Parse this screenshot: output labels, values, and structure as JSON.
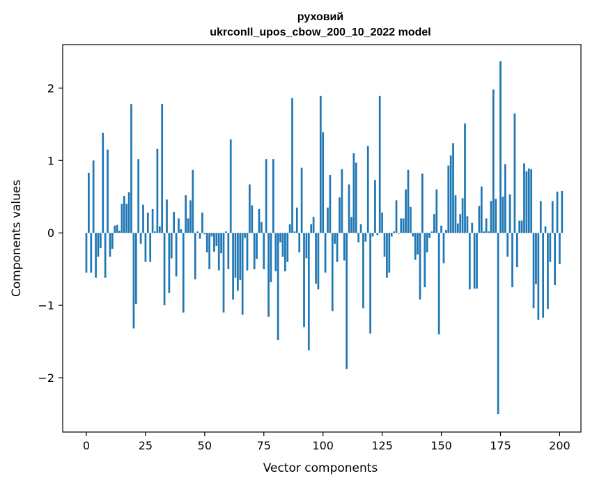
{
  "chart_data": {
    "type": "bar",
    "title": "руховий",
    "subtitle": "ukrconll_upos_cbow_200_10_2022 model",
    "xlabel": "Vector components",
    "ylabel": "Components values",
    "xlim": [
      -10,
      209
    ],
    "ylim": [
      -2.75,
      2.6
    ],
    "xticks": [
      0,
      25,
      50,
      75,
      100,
      125,
      150,
      175,
      200
    ],
    "yticks": [
      -2,
      -1,
      0,
      1,
      2
    ],
    "ytick_labels": [
      "−2",
      "−1",
      "0",
      "1",
      "2"
    ],
    "bar_color": "#1f77b4",
    "grid": false,
    "legend": "none",
    "values": [
      -0.55,
      0.83,
      -0.55,
      1.0,
      -0.62,
      -0.33,
      -0.21,
      1.38,
      -0.62,
      1.15,
      -0.33,
      -0.22,
      0.1,
      0.11,
      0.03,
      0.4,
      0.51,
      0.4,
      0.56,
      1.78,
      -1.32,
      -0.98,
      1.02,
      -0.15,
      0.39,
      -0.4,
      0.28,
      -0.4,
      0.33,
      0.02,
      1.16,
      0.09,
      1.78,
      -1.0,
      0.46,
      -0.83,
      -0.35,
      0.29,
      -0.6,
      0.2,
      0.05,
      -1.1,
      0.52,
      0.2,
      0.45,
      0.87,
      -0.64,
      0.02,
      -0.08,
      0.28,
      -0.02,
      -0.27,
      -0.5,
      -0.05,
      -0.26,
      -0.18,
      -0.52,
      -0.28,
      -1.1,
      0.02,
      -0.5,
      1.29,
      -0.92,
      -0.62,
      -0.8,
      -0.65,
      -1.13,
      -0.07,
      -0.52,
      0.67,
      0.38,
      -0.5,
      -0.36,
      0.33,
      0.15,
      -0.5,
      1.02,
      -1.16,
      -0.68,
      1.02,
      -0.53,
      -1.48,
      -0.13,
      -0.33,
      -0.53,
      -0.4,
      0.12,
      1.86,
      0.02,
      0.35,
      -0.27,
      0.9,
      -1.3,
      -0.35,
      -1.62,
      0.12,
      0.22,
      -0.7,
      -0.78,
      1.89,
      1.39,
      -0.55,
      0.35,
      0.8,
      -1.08,
      -0.15,
      -0.4,
      0.49,
      0.88,
      -0.38,
      -1.88,
      0.67,
      0.22,
      1.1,
      0.97,
      -0.13,
      0.12,
      -1.04,
      -0.12,
      1.2,
      -1.39,
      -0.05,
      0.73,
      -0.03,
      1.89,
      0.28,
      -0.33,
      -0.62,
      -0.55,
      -0.05,
      0.02,
      0.45,
      -0.01,
      0.2,
      0.2,
      0.6,
      0.87,
      0.36,
      -0.05,
      -0.37,
      -0.3,
      -0.92,
      0.82,
      -0.75,
      -0.27,
      -0.07,
      0.02,
      0.26,
      0.6,
      -1.4,
      0.1,
      -0.42,
      0.04,
      0.93,
      1.07,
      1.24,
      0.52,
      0.13,
      0.26,
      0.48,
      1.51,
      0.23,
      -0.78,
      0.14,
      -0.77,
      -0.77,
      0.37,
      0.64,
      0.02,
      0.2,
      0.02,
      0.44,
      1.98,
      0.47,
      -2.5,
      2.37,
      0.5,
      0.95,
      -0.33,
      0.53,
      -0.75,
      1.65,
      -0.47,
      0.17,
      0.17,
      0.96,
      0.85,
      0.89,
      0.88,
      -1.04,
      -0.71,
      -1.2,
      0.44,
      -1.17,
      0.09,
      -1.05,
      -0.4,
      0.44,
      -0.72,
      0.57,
      -0.43,
      0.58
    ]
  }
}
